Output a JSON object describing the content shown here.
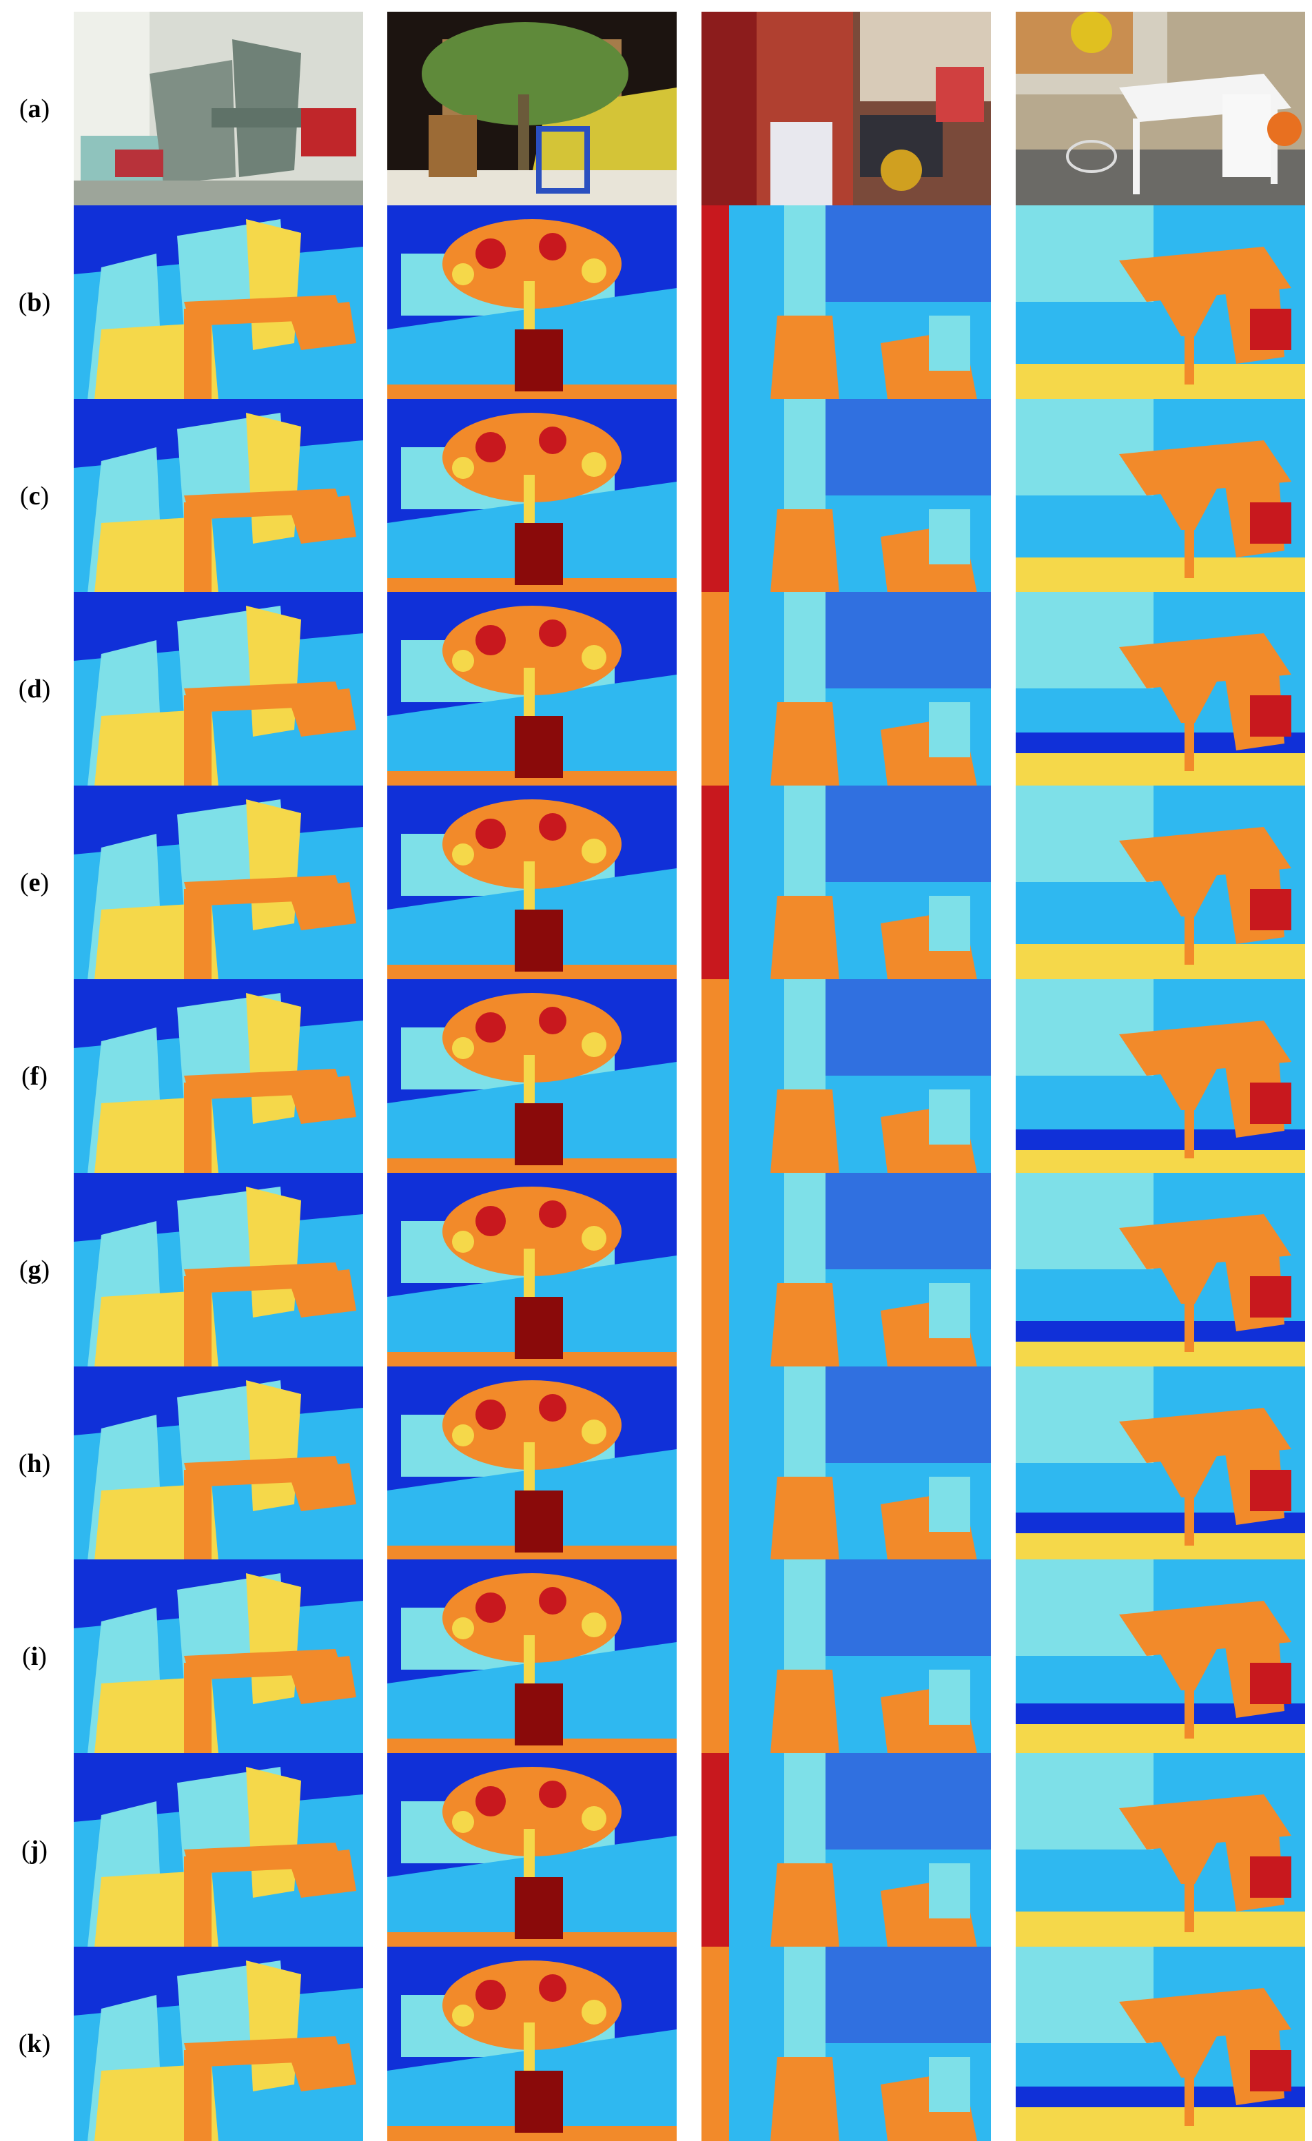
{
  "rows": [
    {
      "id": "a",
      "label_open": "(",
      "label_letter": "a",
      "label_close": ")",
      "kind": "photo"
    },
    {
      "id": "b",
      "label_open": "(",
      "label_letter": "b",
      "label_close": ")",
      "kind": "ground-truth"
    },
    {
      "id": "c",
      "label_open": "(",
      "label_letter": "c",
      "label_close": ")",
      "kind": "disparity"
    },
    {
      "id": "d",
      "label_open": "(",
      "label_letter": "d",
      "label_close": ")",
      "kind": "disparity"
    },
    {
      "id": "e",
      "label_open": "(",
      "label_letter": "e",
      "label_close": ")",
      "kind": "disparity"
    },
    {
      "id": "f",
      "label_open": "(",
      "label_letter": "f",
      "label_close": ")",
      "kind": "disparity"
    },
    {
      "id": "g",
      "label_open": "(",
      "label_letter": "g",
      "label_close": ")",
      "kind": "disparity"
    },
    {
      "id": "h",
      "label_open": "(",
      "label_letter": "h",
      "label_close": ")",
      "kind": "disparity"
    },
    {
      "id": "i",
      "label_open": "(",
      "label_letter": "i",
      "label_close": ")",
      "kind": "disparity"
    },
    {
      "id": "j",
      "label_open": "(",
      "label_letter": "j",
      "label_close": ")",
      "kind": "disparity"
    },
    {
      "id": "k",
      "label_open": "(",
      "label_letter": "k",
      "label_close": ")",
      "kind": "disparity"
    }
  ],
  "columns": [
    {
      "scene": "adirondack-chair"
    },
    {
      "scene": "jade-plant"
    },
    {
      "scene": "playroom"
    },
    {
      "scene": "playtable"
    }
  ],
  "colors": {
    "far": "#1030d8",
    "mid": "#2fb8f0",
    "near_mid": "#7ee0e8",
    "yellow": "#f5d84a",
    "orange": "#f28a2a",
    "red": "#c8181e",
    "dark_red": "#8a0a0a"
  }
}
